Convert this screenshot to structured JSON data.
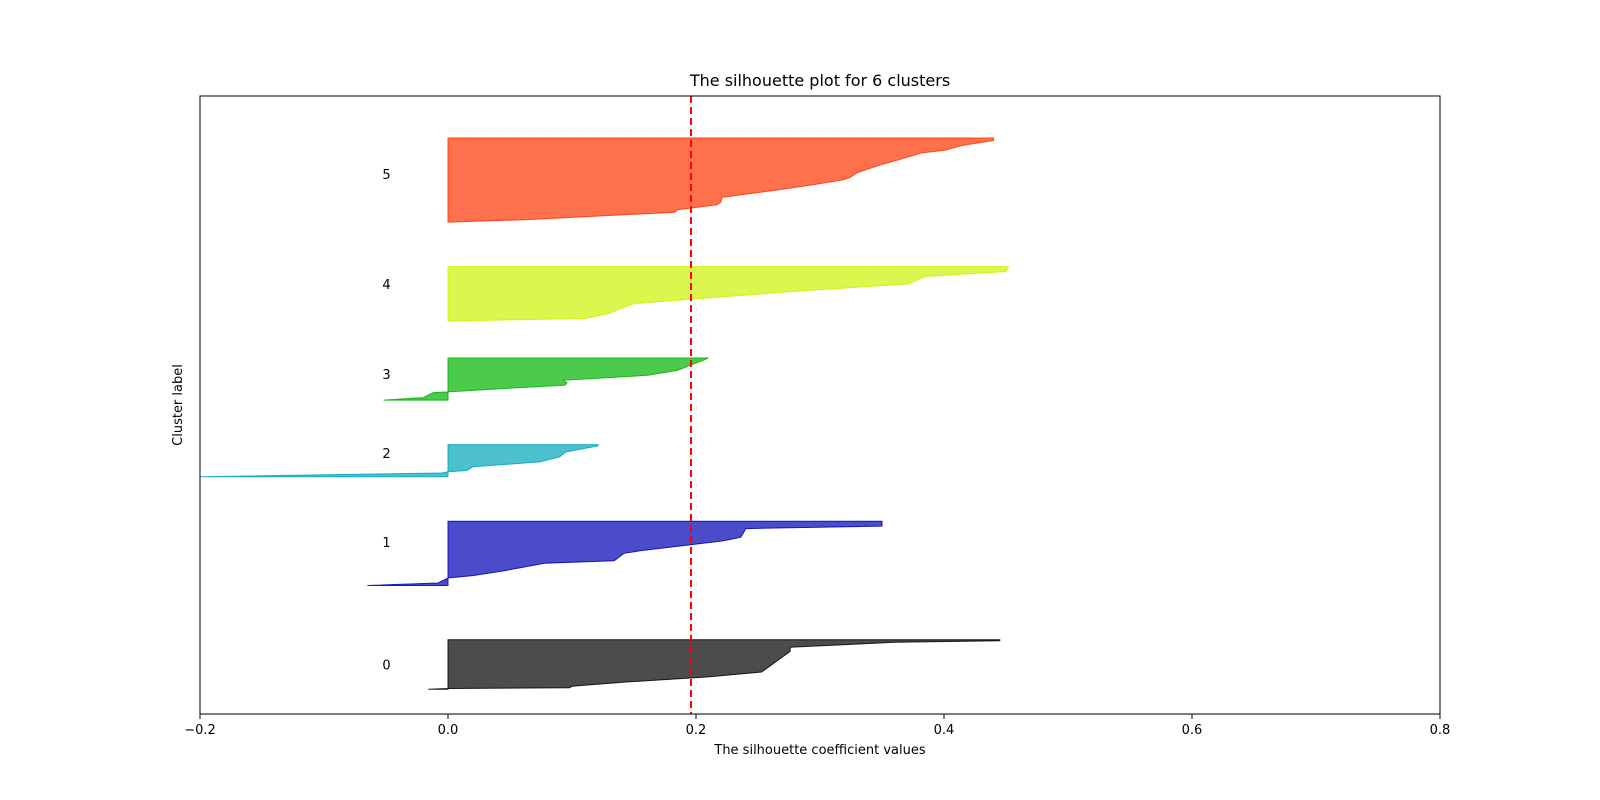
{
  "chart_data": {
    "type": "area",
    "title": "The silhouette plot for 6 clusters",
    "xlabel": "The silhouette coefficient values",
    "ylabel": "Cluster label",
    "xlim": [
      -0.2,
      0.8
    ],
    "xticks": [
      -0.2,
      0.0,
      0.2,
      0.4,
      0.6,
      0.8
    ],
    "xtick_labels": [
      "−0.2",
      "0.0",
      "0.2",
      "0.4",
      "0.6",
      "0.8"
    ],
    "ylim": [
      0,
      250
    ],
    "yticks_shown": false,
    "grid": false,
    "average_silhouette": 0.196,
    "average_line_color": "#ff0000",
    "average_line_style": "dashed",
    "fill_alpha": 0.7,
    "clusters": [
      {
        "label": "0",
        "color": "#000000",
        "y_lower": 10,
        "y_upper": 30,
        "label_y": 20,
        "profile": [
          [
            10,
            -0.016
          ],
          [
            10.3,
            0.0
          ],
          [
            10.6,
            0.098
          ],
          [
            11.2,
            0.1
          ],
          [
            13,
            0.145
          ],
          [
            15,
            0.21
          ],
          [
            17,
            0.253
          ],
          [
            25,
            0.275
          ],
          [
            25.4,
            0.276
          ],
          [
            27,
            0.276
          ],
          [
            27.8,
            0.31
          ],
          [
            29,
            0.36
          ],
          [
            29.6,
            0.445
          ],
          [
            30,
            0.445
          ]
        ]
      },
      {
        "label": "1",
        "color": "#0000b3",
        "y_lower": 52,
        "y_upper": 78,
        "label_y": 69.5,
        "profile": [
          [
            52,
            -0.065
          ],
          [
            53,
            -0.008
          ],
          [
            55,
            0.0
          ],
          [
            56,
            0.02
          ],
          [
            58,
            0.046
          ],
          [
            61,
            0.078
          ],
          [
            62,
            0.134
          ],
          [
            65,
            0.142
          ],
          [
            66,
            0.155
          ],
          [
            70,
            0.221
          ],
          [
            71.5,
            0.236
          ],
          [
            73,
            0.238
          ],
          [
            75,
            0.24
          ],
          [
            76,
            0.35
          ],
          [
            78,
            0.35
          ]
        ]
      },
      {
        "label": "2",
        "color": "#00a6b8",
        "y_lower": 96,
        "y_upper": 109,
        "label_y": 105.5,
        "profile": [
          [
            96,
            -0.2
          ],
          [
            97.5,
            -0.005
          ],
          [
            98,
            0.0
          ],
          [
            98.5,
            0.015
          ],
          [
            100,
            0.02
          ],
          [
            102,
            0.074
          ],
          [
            104,
            0.09
          ],
          [
            106,
            0.095
          ],
          [
            108.5,
            0.121
          ],
          [
            109,
            0.121
          ]
        ]
      },
      {
        "label": "3",
        "color": "#00b300",
        "y_lower": 127,
        "y_upper": 144,
        "label_y": 137.5,
        "profile": [
          [
            127,
            -0.052
          ],
          [
            128,
            -0.02
          ],
          [
            130,
            -0.012
          ],
          [
            130.3,
            0.0
          ],
          [
            132,
            0.056
          ],
          [
            133,
            0.094
          ],
          [
            134,
            0.096
          ],
          [
            135,
            0.093
          ],
          [
            137,
            0.161
          ],
          [
            139,
            0.185
          ],
          [
            142,
            0.2
          ],
          [
            144,
            0.21
          ]
        ]
      },
      {
        "label": "4",
        "color": "#ccf200",
        "y_lower": 159,
        "y_upper": 181,
        "label_y": 174,
        "profile": [
          [
            159,
            0.0
          ],
          [
            160,
            0.11
          ],
          [
            162,
            0.13
          ],
          [
            164,
            0.139
          ],
          [
            166,
            0.15
          ],
          [
            171,
            0.28
          ],
          [
            174,
            0.372
          ],
          [
            176,
            0.38
          ],
          [
            177,
            0.385
          ],
          [
            179,
            0.45
          ],
          [
            181,
            0.452
          ]
        ]
      },
      {
        "label": "5",
        "color": "#ff3300",
        "y_lower": 199,
        "y_upper": 233,
        "label_y": 218.5,
        "profile": [
          [
            199,
            0.0
          ],
          [
            200,
            0.064
          ],
          [
            203,
            0.183
          ],
          [
            204,
            0.185
          ],
          [
            206,
            0.217
          ],
          [
            207,
            0.22
          ],
          [
            209,
            0.221
          ],
          [
            212,
            0.266
          ],
          [
            214,
            0.293
          ],
          [
            216,
            0.318
          ],
          [
            217,
            0.324
          ],
          [
            219,
            0.33
          ],
          [
            222,
            0.348
          ],
          [
            224,
            0.362
          ],
          [
            227,
            0.382
          ],
          [
            228,
            0.4
          ],
          [
            230,
            0.415
          ],
          [
            232,
            0.44
          ],
          [
            233,
            0.44
          ]
        ]
      }
    ]
  }
}
